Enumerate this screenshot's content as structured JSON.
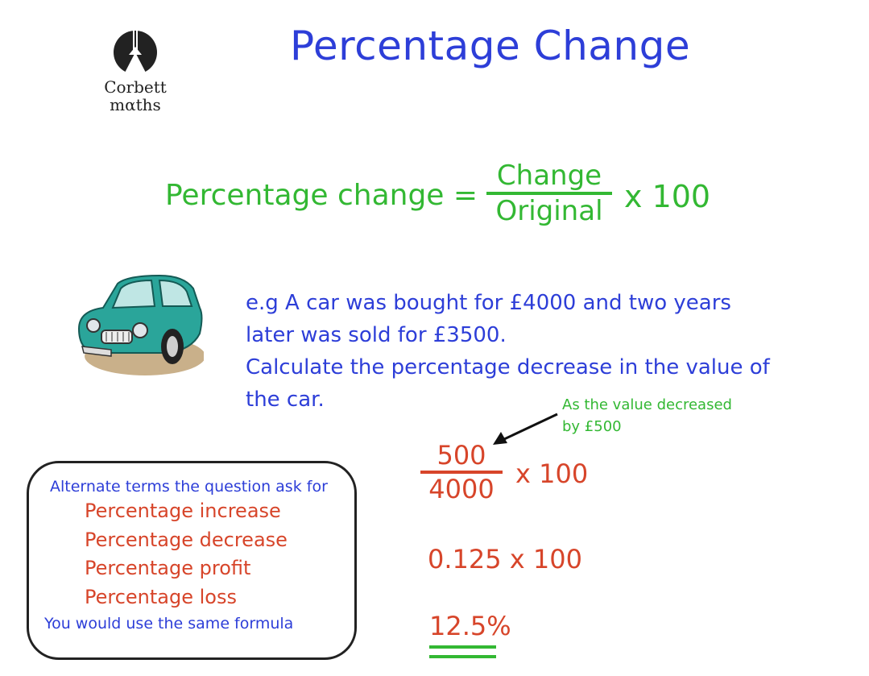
{
  "page": {
    "title": "Percentage Change",
    "logo": {
      "line1": "Corbett",
      "line2": "mαths"
    }
  },
  "formula": {
    "label": "Percentage change =",
    "numerator": "Change",
    "denominator": "Original",
    "multiplier": "x 100"
  },
  "question": {
    "lines": [
      "e.g  A car was bought for £4000 and two years",
      "later was sold for £3500.",
      "Calculate the percentage decrease in the value of",
      "the car."
    ]
  },
  "note": {
    "lines": [
      "As the value decreased",
      "by £500"
    ]
  },
  "working": {
    "numerator": "500",
    "denominator": "4000",
    "multiplier": "x 100",
    "step2": "0.125 x 100",
    "answer": "12.5%"
  },
  "terms_box": {
    "heading": "Alternate terms the question ask for",
    "items": [
      "Percentage increase",
      "Percentage decrease",
      "Percentage profit",
      "Percentage loss"
    ],
    "footer": "You would use the same formula"
  },
  "colors": {
    "title": "#2d3ed8",
    "formula": "#33b833",
    "working": "#d7452a",
    "car_body": "#2aa59a"
  }
}
